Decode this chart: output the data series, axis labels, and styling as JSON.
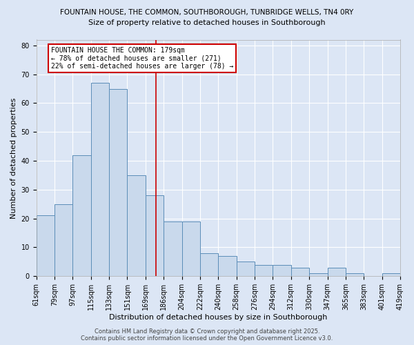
{
  "title1": "FOUNTAIN HOUSE, THE COMMON, SOUTHBOROUGH, TUNBRIDGE WELLS, TN4 0RY",
  "title2": "Size of property relative to detached houses in Southborough",
  "xlabel": "Distribution of detached houses by size in Southborough",
  "ylabel": "Number of detached properties",
  "footer1": "Contains HM Land Registry data © Crown copyright and database right 2025.",
  "footer2": "Contains public sector information licensed under the Open Government Licence v3.0.",
  "annotation_title": "FOUNTAIN HOUSE THE COMMON: 179sqm",
  "annotation_line2": "← 78% of detached houses are smaller (271)",
  "annotation_line3": "22% of semi-detached houses are larger (78) →",
  "bar_heights": [
    21,
    25,
    42,
    67,
    65,
    35,
    28,
    19,
    19,
    8,
    7,
    5,
    4,
    4,
    3,
    1,
    3,
    1,
    0,
    1
  ],
  "n_bars": 20,
  "vline_bar_index": 6.6,
  "bar_face_color": "#c9d9ec",
  "bar_edge_color": "#5b8db8",
  "vline_color": "#cc0000",
  "annotation_box_color": "#cc0000",
  "background_color": "#dce6f5",
  "ylim": [
    0,
    82
  ],
  "yticks": [
    0,
    10,
    20,
    30,
    40,
    50,
    60,
    70,
    80
  ],
  "x_tick_labels": [
    "61sqm",
    "79sqm",
    "97sqm",
    "115sqm",
    "133sqm",
    "151sqm",
    "169sqm",
    "186sqm",
    "204sqm",
    "222sqm",
    "240sqm",
    "258sqm",
    "276sqm",
    "294sqm",
    "312sqm",
    "330sqm",
    "347sqm",
    "365sqm",
    "383sqm",
    "401sqm",
    "419sqm"
  ],
  "title1_fontsize": 7.5,
  "title2_fontsize": 8.0,
  "ylabel_fontsize": 8,
  "xlabel_fontsize": 8,
  "tick_fontsize": 7,
  "footer_fontsize": 6,
  "annot_fontsize": 7
}
